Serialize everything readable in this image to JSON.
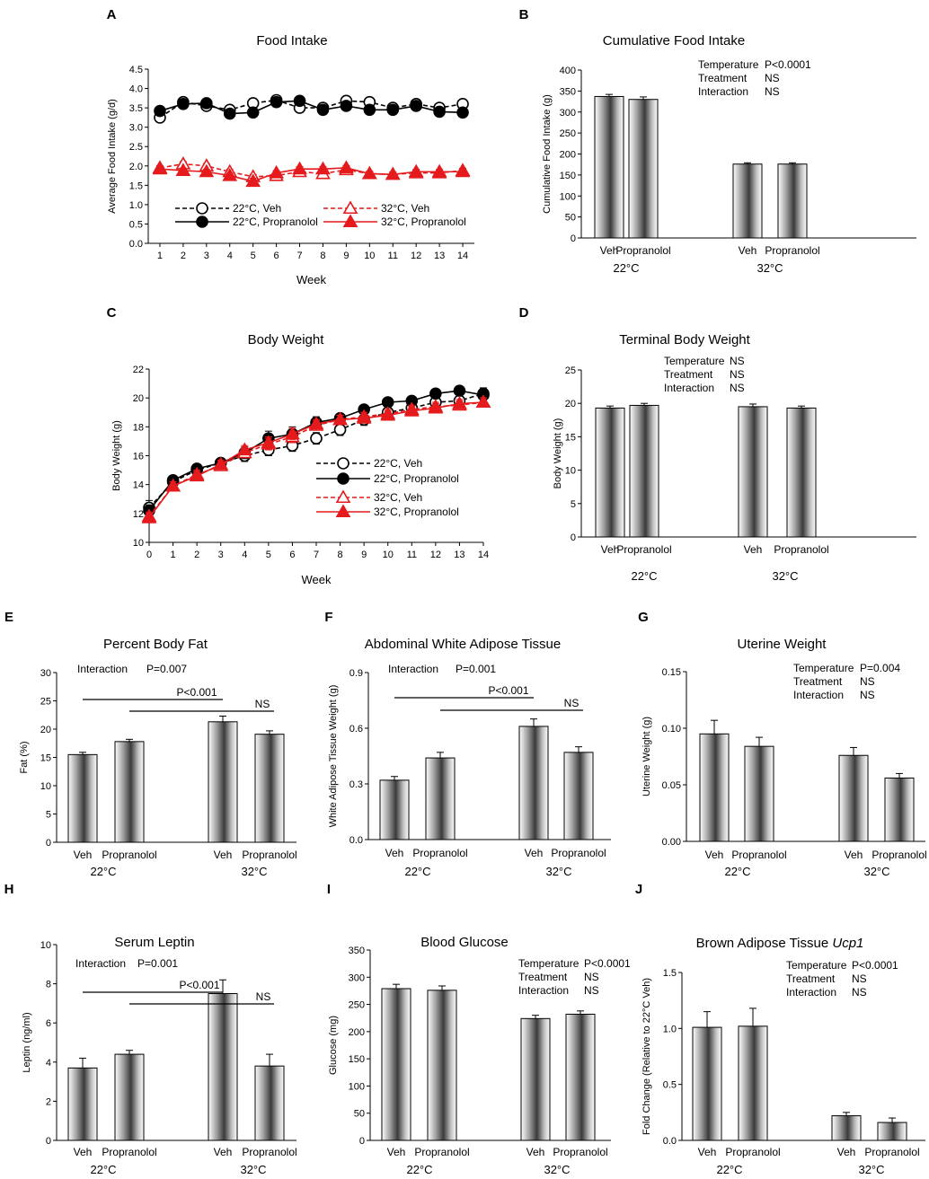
{
  "colors": {
    "black": "#000000",
    "red": "#e41a1c"
  },
  "chart_data": [
    {
      "id": "A",
      "type": "line",
      "panel": "A",
      "title": "Food Intake",
      "xlabel": "Week",
      "ylabel": "Average Food Intake (g/d)",
      "xlim": [
        0.5,
        14.5
      ],
      "ylim": [
        0,
        4.5
      ],
      "xticks": [
        "1",
        "2",
        "3",
        "4",
        "5",
        "6",
        "7",
        "8",
        "9",
        "10",
        "11",
        "12",
        "13",
        "14"
      ],
      "yticks": [
        "0.0",
        "0.5",
        "1.0",
        "1.5",
        "2.0",
        "2.5",
        "3.0",
        "3.5",
        "4.0",
        "4.5"
      ],
      "x": [
        1,
        2,
        3,
        4,
        5,
        6,
        7,
        8,
        9,
        10,
        11,
        12,
        13,
        14
      ],
      "series": [
        {
          "name": "22°C, Veh",
          "color": "#000000",
          "dash": true,
          "marker": "circle-open",
          "values": [
            3.25,
            3.65,
            3.55,
            3.45,
            3.62,
            3.7,
            3.5,
            3.5,
            3.68,
            3.65,
            3.5,
            3.6,
            3.5,
            3.6
          ],
          "errors": [
            0.1,
            0.08,
            0.1,
            0.08,
            0.12,
            0.1,
            0.08,
            0.06,
            0.08,
            0.06,
            0.06,
            0.06,
            0.06,
            0.06
          ]
        },
        {
          "name": "22°C, Propranolol",
          "color": "#000000",
          "dash": false,
          "marker": "circle-filled",
          "values": [
            3.42,
            3.6,
            3.62,
            3.35,
            3.38,
            3.65,
            3.68,
            3.45,
            3.55,
            3.45,
            3.45,
            3.55,
            3.4,
            3.38
          ],
          "errors": [
            0.06,
            0.06,
            0.06,
            0.06,
            0.06,
            0.12,
            0.08,
            0.06,
            0.06,
            0.06,
            0.06,
            0.06,
            0.06,
            0.06
          ]
        },
        {
          "name": "32°C, Veh",
          "color": "#e41a1c",
          "dash": true,
          "marker": "triangle-open",
          "values": [
            1.95,
            2.05,
            2.0,
            1.85,
            1.72,
            1.75,
            1.85,
            1.8,
            1.9,
            1.8,
            1.78,
            1.82,
            1.82,
            1.88
          ],
          "errors": [
            0.06,
            0.06,
            0.06,
            0.06,
            0.06,
            0.06,
            0.06,
            0.06,
            0.06,
            0.06,
            0.06,
            0.06,
            0.06,
            0.06
          ]
        },
        {
          "name": "32°C, Propranolol",
          "color": "#e41a1c",
          "dash": false,
          "marker": "triangle-filled",
          "values": [
            1.92,
            1.88,
            1.85,
            1.75,
            1.6,
            1.82,
            1.92,
            1.92,
            1.95,
            1.8,
            1.78,
            1.85,
            1.85,
            1.85
          ],
          "errors": [
            0.06,
            0.06,
            0.06,
            0.06,
            0.08,
            0.06,
            0.06,
            0.06,
            0.06,
            0.06,
            0.06,
            0.06,
            0.06,
            0.06
          ]
        }
      ],
      "legend": "bottom-center"
    },
    {
      "id": "B",
      "type": "bar",
      "panel": "B",
      "title": "Cumulative Food Intake",
      "ylabel": "Cumulative Food Intake (g)",
      "ylim": [
        0,
        400
      ],
      "yticks": [
        "0",
        "50",
        "100",
        "150",
        "200",
        "250",
        "300",
        "350",
        "400"
      ],
      "categories": [
        "Veh",
        "Propranolol",
        "Veh",
        "Propranolol"
      ],
      "groups": [
        "22°C",
        "32°C"
      ],
      "values": [
        337,
        330,
        176,
        176
      ],
      "errors": [
        5,
        6,
        3,
        3
      ],
      "stats": [
        {
          "label": "Temperature",
          "value": "P<0.0001"
        },
        {
          "label": "Treatment",
          "value": "NS"
        },
        {
          "label": "Interaction",
          "value": "NS"
        }
      ],
      "legend": "none"
    },
    {
      "id": "C",
      "type": "line",
      "panel": "C",
      "title": "Body Weight",
      "xlabel": "Week",
      "ylabel": "Body Weight (g)",
      "xlim": [
        0,
        14
      ],
      "ylim": [
        10,
        22
      ],
      "xticks": [
        "0",
        "1",
        "2",
        "3",
        "4",
        "5",
        "6",
        "7",
        "8",
        "9",
        "10",
        "11",
        "12",
        "13",
        "14"
      ],
      "yticks": [
        "10",
        "12",
        "14",
        "16",
        "18",
        "20",
        "22"
      ],
      "x": [
        0,
        1,
        2,
        3,
        4,
        5,
        6,
        7,
        8,
        9,
        10,
        11,
        12,
        13,
        14
      ],
      "series": [
        {
          "name": "22°C, Veh",
          "color": "#000000",
          "dash": true,
          "marker": "circle-open",
          "values": [
            12.4,
            14.2,
            15.0,
            15.5,
            16.0,
            16.4,
            16.7,
            17.2,
            17.8,
            18.5,
            19.0,
            19.3,
            19.7,
            19.8,
            20.3
          ],
          "errors": [
            0.5,
            0.3,
            0.3,
            0.3,
            0.4,
            0.4,
            0.4,
            0.4,
            0.4,
            0.4,
            0.4,
            0.4,
            0.4,
            0.4,
            0.4
          ]
        },
        {
          "name": "22°C, Propranolol",
          "color": "#000000",
          "dash": false,
          "marker": "circle-filled",
          "values": [
            12.2,
            14.3,
            15.1,
            15.5,
            16.2,
            17.2,
            17.5,
            18.3,
            18.6,
            19.2,
            19.7,
            19.8,
            20.3,
            20.5,
            20.2
          ],
          "errors": [
            0.4,
            0.3,
            0.3,
            0.3,
            0.4,
            0.5,
            0.5,
            0.4,
            0.3,
            0.3,
            0.3,
            0.3,
            0.3,
            0.3,
            0.4
          ]
        },
        {
          "name": "32°C, Veh",
          "color": "#e41a1c",
          "dash": true,
          "marker": "triangle-open",
          "values": [
            11.8,
            13.9,
            14.7,
            15.3,
            16.2,
            16.8,
            17.3,
            18.1,
            18.5,
            18.7,
            18.9,
            19.2,
            19.4,
            19.5,
            19.7
          ],
          "errors": [
            0.3,
            0.3,
            0.3,
            0.3,
            0.3,
            0.4,
            0.4,
            0.3,
            0.3,
            0.3,
            0.3,
            0.3,
            0.3,
            0.3,
            0.3
          ]
        },
        {
          "name": "32°C, Propranolol",
          "color": "#e41a1c",
          "dash": false,
          "marker": "triangle-filled",
          "values": [
            11.7,
            13.9,
            14.6,
            15.4,
            16.4,
            16.9,
            17.5,
            18.2,
            18.5,
            18.6,
            18.8,
            19.1,
            19.3,
            19.6,
            19.7
          ],
          "errors": [
            0.3,
            0.3,
            0.3,
            0.3,
            0.3,
            0.4,
            0.4,
            0.3,
            0.3,
            0.3,
            0.3,
            0.3,
            0.3,
            0.3,
            0.3
          ]
        }
      ],
      "legend": "right"
    },
    {
      "id": "D",
      "type": "bar",
      "panel": "D",
      "title": "Terminal Body Weight",
      "ylabel": "Body Weight (g)",
      "ylim": [
        0,
        25
      ],
      "yticks": [
        "0",
        "5",
        "10",
        "15",
        "20",
        "25"
      ],
      "categories": [
        "Veh",
        "Propranolol",
        "Veh",
        "Propranolol"
      ],
      "groups": [
        "22°C",
        "32°C"
      ],
      "values": [
        19.3,
        19.7,
        19.5,
        19.3
      ],
      "errors": [
        0.3,
        0.3,
        0.4,
        0.3
      ],
      "stats": [
        {
          "label": "Temperature",
          "value": "NS"
        },
        {
          "label": "Treatment",
          "value": "NS"
        },
        {
          "label": "Interaction",
          "value": "NS"
        }
      ],
      "legend": "none"
    },
    {
      "id": "E",
      "type": "bar",
      "panel": "E",
      "title": "Percent Body Fat",
      "ylabel": "Fat (%)",
      "ylim": [
        0,
        30
      ],
      "yticks": [
        "0",
        "5",
        "10",
        "15",
        "20",
        "25",
        "30"
      ],
      "categories": [
        "Veh",
        "Propranolol",
        "Veh",
        "Propranolol"
      ],
      "groups": [
        "22°C",
        "32°C"
      ],
      "values": [
        15.5,
        17.8,
        21.3,
        19.1
      ],
      "errors": [
        0.4,
        0.4,
        1.0,
        0.6
      ],
      "interaction": {
        "label": "Interaction",
        "value": "P=0.007"
      },
      "comparisons": [
        {
          "label": "P<0.001"
        },
        {
          "label": "NS"
        }
      ],
      "legend": "none"
    },
    {
      "id": "F",
      "type": "bar",
      "panel": "F",
      "title": "Abdominal White Adipose Tissue",
      "ylabel": "White Adipose Tissue Weight (g)",
      "ylim": [
        0,
        0.9
      ],
      "yticks": [
        "0.0",
        "0.3",
        "0.6",
        "0.9"
      ],
      "categories": [
        "Veh",
        "Propranolol",
        "Veh",
        "Propranolol"
      ],
      "groups": [
        "22°C",
        "32°C"
      ],
      "values": [
        0.32,
        0.44,
        0.61,
        0.47
      ],
      "errors": [
        0.02,
        0.03,
        0.04,
        0.03
      ],
      "interaction": {
        "label": "Interaction",
        "value": "P=0.001"
      },
      "comparisons": [
        {
          "label": "P<0.001"
        },
        {
          "label": "NS"
        }
      ],
      "legend": "none"
    },
    {
      "id": "G",
      "type": "bar",
      "panel": "G",
      "title": "Uterine Weight",
      "ylabel": "Uterine Weight (g)",
      "ylim": [
        0,
        0.15
      ],
      "yticks": [
        "0.00",
        "0.05",
        "0.10",
        "0.15"
      ],
      "categories": [
        "Veh",
        "Propranolol",
        "Veh",
        "Propranolol"
      ],
      "groups": [
        "22°C",
        "32°C"
      ],
      "values": [
        0.095,
        0.084,
        0.076,
        0.056
      ],
      "errors": [
        0.012,
        0.008,
        0.007,
        0.004
      ],
      "stats": [
        {
          "label": "Temperature",
          "value": "P=0.004"
        },
        {
          "label": "Treatment",
          "value": "NS"
        },
        {
          "label": "Interaction",
          "value": "NS"
        }
      ],
      "legend": "none"
    },
    {
      "id": "H",
      "type": "bar",
      "panel": "H",
      "title": "Serum Leptin",
      "ylabel": "Leptin (ng/ml)",
      "ylim": [
        0,
        10
      ],
      "yticks": [
        "0",
        "2",
        "4",
        "6",
        "8",
        "10"
      ],
      "categories": [
        "Veh",
        "Propranolol",
        "Veh",
        "Propranolol"
      ],
      "groups": [
        "22°C",
        "32°C"
      ],
      "values": [
        3.7,
        4.4,
        7.5,
        3.8
      ],
      "errors": [
        0.5,
        0.2,
        0.7,
        0.6
      ],
      "interaction": {
        "label": "Interaction",
        "value": "P=0.001"
      },
      "comparisons": [
        {
          "label": "P<0.001"
        },
        {
          "label": "NS"
        }
      ],
      "legend": "none"
    },
    {
      "id": "I",
      "type": "bar",
      "panel": "I",
      "title": "Blood Glucose",
      "ylabel": "Glucose  (mg)",
      "ylim": [
        0,
        350
      ],
      "yticks": [
        "0",
        "50",
        "100",
        "150",
        "200",
        "250",
        "300",
        "350"
      ],
      "categories": [
        "Veh",
        "Propranolol",
        "Veh",
        "Propranolol"
      ],
      "groups": [
        "22°C",
        "32°C"
      ],
      "values": [
        279,
        276,
        224,
        232
      ],
      "errors": [
        8,
        8,
        6,
        6
      ],
      "stats": [
        {
          "label": "Temperature",
          "value": "P<0.0001"
        },
        {
          "label": "Treatment",
          "value": "NS"
        },
        {
          "label": "Interaction",
          "value": "NS"
        }
      ],
      "legend": "none"
    },
    {
      "id": "J",
      "type": "bar",
      "panel": "J",
      "title": "Brown Adipose Tissue",
      "title_gene": "Ucp1",
      "ylabel": "Fold Change (Relative to 22°C Veh)",
      "ylim": [
        0,
        1.5
      ],
      "yticks": [
        "0.0",
        "0.5",
        "1.0",
        "1.5"
      ],
      "categories": [
        "Veh",
        "Propranolol",
        "Veh",
        "Propranolol"
      ],
      "groups": [
        "22°C",
        "32°C"
      ],
      "values": [
        1.01,
        1.02,
        0.22,
        0.16
      ],
      "errors": [
        0.14,
        0.16,
        0.03,
        0.04
      ],
      "stats": [
        {
          "label": "Temperature",
          "value": "P<0.0001"
        },
        {
          "label": "Treatment",
          "value": "NS"
        },
        {
          "label": "Interaction",
          "value": "NS"
        }
      ],
      "legend": "none"
    }
  ]
}
